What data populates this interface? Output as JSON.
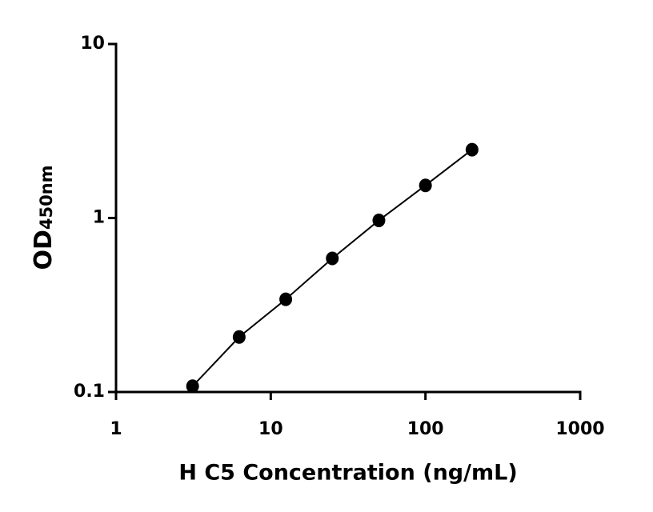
{
  "chart_data": {
    "type": "scatter",
    "xlabel": "H C5 Concentration (ng/mL)",
    "ylabel": "OD",
    "ylabel_subscript": "450nm",
    "xscale": "log",
    "yscale": "log",
    "xlim": [
      1,
      1000
    ],
    "ylim": [
      0.1,
      10
    ],
    "xticks": [
      1,
      10,
      100,
      1000
    ],
    "yticks": [
      0.1,
      1,
      10
    ],
    "series": [
      {
        "color": "#000000",
        "line": true,
        "x": [
          3.125,
          6.25,
          12.5,
          25,
          50,
          100,
          200
        ],
        "values": [
          0.108,
          0.207,
          0.341,
          0.586,
          0.969,
          1.54,
          2.47
        ]
      }
    ]
  }
}
